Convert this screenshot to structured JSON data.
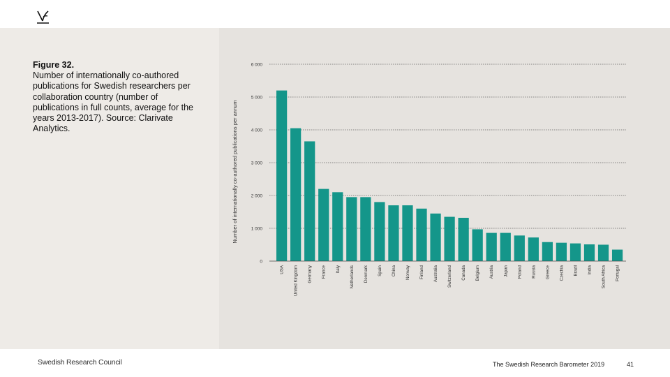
{
  "header": {
    "logo": "swedish-research-council-logo"
  },
  "caption": {
    "title": "Figure 32.",
    "body": "Number of internationally co-authored publications for Swedish researchers per collaboration country (number of publications in full counts, average for the years 2013-2017). Source: Clarivate Analytics."
  },
  "chart_data": {
    "type": "bar",
    "title": "",
    "xlabel": "",
    "ylabel": "Number of internationally co-authored publications per annum",
    "ylim": [
      0,
      6000
    ],
    "yticks": [
      0,
      1000,
      2000,
      3000,
      4000,
      5000,
      6000
    ],
    "ytick_labels": [
      "0",
      "1 000",
      "2 000",
      "3 000",
      "4 000",
      "5 000",
      "6 000"
    ],
    "grid": true,
    "bar_color": "#14968a",
    "categories": [
      "USA",
      "United Kingdom",
      "Germany",
      "France",
      "Italy",
      "Netherlands",
      "Denmark",
      "Spain",
      "China",
      "Norway",
      "Finland",
      "Australia",
      "Switzerland",
      "Canada",
      "Belgium",
      "Austria",
      "Japan",
      "Poland",
      "Russia",
      "Greece",
      "Czechia",
      "Brazil",
      "India",
      "South Africa",
      "Portugal"
    ],
    "values": [
      5200,
      4050,
      3650,
      2200,
      2100,
      1950,
      1950,
      1800,
      1700,
      1700,
      1600,
      1450,
      1350,
      1320,
      970,
      860,
      860,
      780,
      720,
      580,
      560,
      540,
      510,
      500,
      350
    ]
  },
  "footer": {
    "organization": "Swedish Research Council",
    "publication": "The Swedish Research Barometer 2019",
    "page": "41"
  }
}
